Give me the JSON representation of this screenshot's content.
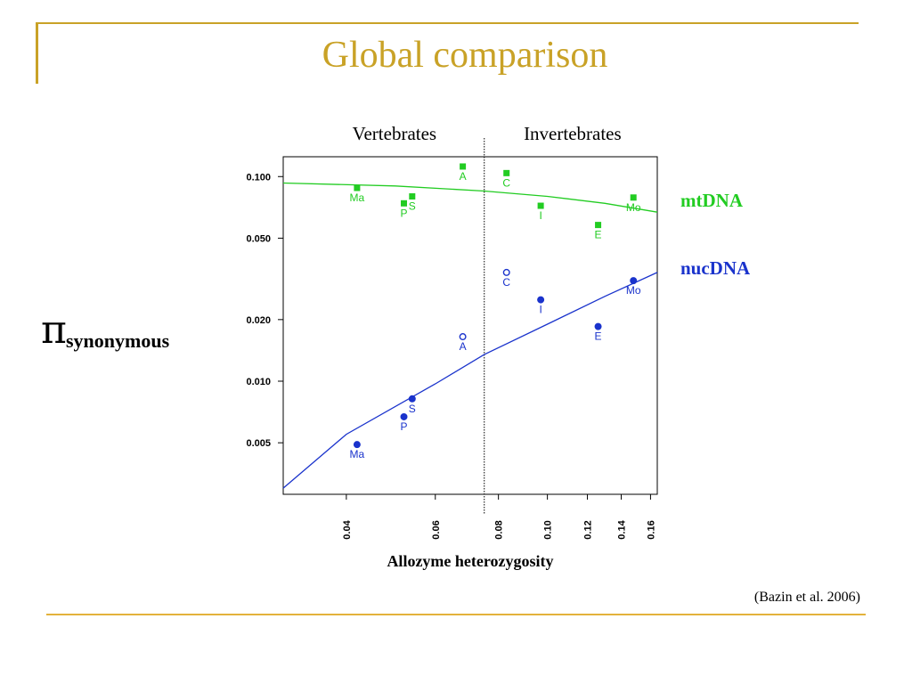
{
  "slide": {
    "title": "Global comparison",
    "citation": "(Bazin et al. 2006)"
  },
  "colors": {
    "accent": "#C9A227",
    "mt": "#22CC22",
    "nuc": "#1A33CC"
  },
  "chart_data": {
    "type": "scatter",
    "xlabel": "Allozyme heterozygosity",
    "ylabel_symbol": "π",
    "ylabel_sub": "synonymous",
    "x_scale": "log",
    "y_scale": "log",
    "xlim": [
      0.03,
      0.165
    ],
    "ylim": [
      0.0028,
      0.125
    ],
    "x_ticks": [
      {
        "value": 0.04,
        "label": "0.04"
      },
      {
        "value": 0.06,
        "label": "0.06"
      },
      {
        "value": 0.08,
        "label": "0.08"
      },
      {
        "value": 0.1,
        "label": "0.10"
      },
      {
        "value": 0.12,
        "label": "0.12"
      },
      {
        "value": 0.14,
        "label": "0.14"
      },
      {
        "value": 0.16,
        "label": "0.16"
      }
    ],
    "y_ticks": [
      {
        "value": 0.1,
        "label": "0.100"
      },
      {
        "value": 0.05,
        "label": "0.050"
      },
      {
        "value": 0.02,
        "label": "0.020"
      },
      {
        "value": 0.01,
        "label": "0.010"
      },
      {
        "value": 0.005,
        "label": "0.005"
      }
    ],
    "divider_x": 0.075,
    "region_labels": [
      "Vertebrates",
      "Invertebrates"
    ],
    "series": [
      {
        "name": "mtDNA",
        "marker": "square",
        "points": [
          {
            "label": "Ma",
            "x": 0.042,
            "y": 0.088,
            "filled": true
          },
          {
            "label": "P",
            "x": 0.052,
            "y": 0.074,
            "filled": true
          },
          {
            "label": "S",
            "x": 0.054,
            "y": 0.08,
            "filled": true
          },
          {
            "label": "A",
            "x": 0.068,
            "y": 0.112,
            "filled": true
          },
          {
            "label": "C",
            "x": 0.083,
            "y": 0.104,
            "filled": true
          },
          {
            "label": "I",
            "x": 0.097,
            "y": 0.072,
            "filled": true
          },
          {
            "label": "E",
            "x": 0.126,
            "y": 0.058,
            "filled": true
          },
          {
            "label": "Mo",
            "x": 0.148,
            "y": 0.079,
            "filled": true
          }
        ],
        "fit": [
          [
            0.03,
            0.093
          ],
          [
            0.05,
            0.09
          ],
          [
            0.075,
            0.085
          ],
          [
            0.1,
            0.08
          ],
          [
            0.13,
            0.074
          ],
          [
            0.165,
            0.067
          ]
        ]
      },
      {
        "name": "nucDNA",
        "marker": "circle",
        "points": [
          {
            "label": "Ma",
            "x": 0.042,
            "y": 0.0049,
            "filled": true
          },
          {
            "label": "P",
            "x": 0.052,
            "y": 0.0067,
            "filled": true
          },
          {
            "label": "S",
            "x": 0.054,
            "y": 0.0082,
            "filled": true
          },
          {
            "label": "A",
            "x": 0.068,
            "y": 0.0165,
            "filled": false
          },
          {
            "label": "C",
            "x": 0.083,
            "y": 0.034,
            "filled": false
          },
          {
            "label": "I",
            "x": 0.097,
            "y": 0.025,
            "filled": true
          },
          {
            "label": "E",
            "x": 0.126,
            "y": 0.0185,
            "filled": true
          },
          {
            "label": "Mo",
            "x": 0.148,
            "y": 0.031,
            "filled": true
          }
        ],
        "fit": [
          [
            0.03,
            0.003
          ],
          [
            0.04,
            0.0055
          ],
          [
            0.06,
            0.0097
          ],
          [
            0.075,
            0.0135
          ],
          [
            0.1,
            0.019
          ],
          [
            0.13,
            0.026
          ],
          [
            0.165,
            0.034
          ]
        ]
      }
    ]
  }
}
